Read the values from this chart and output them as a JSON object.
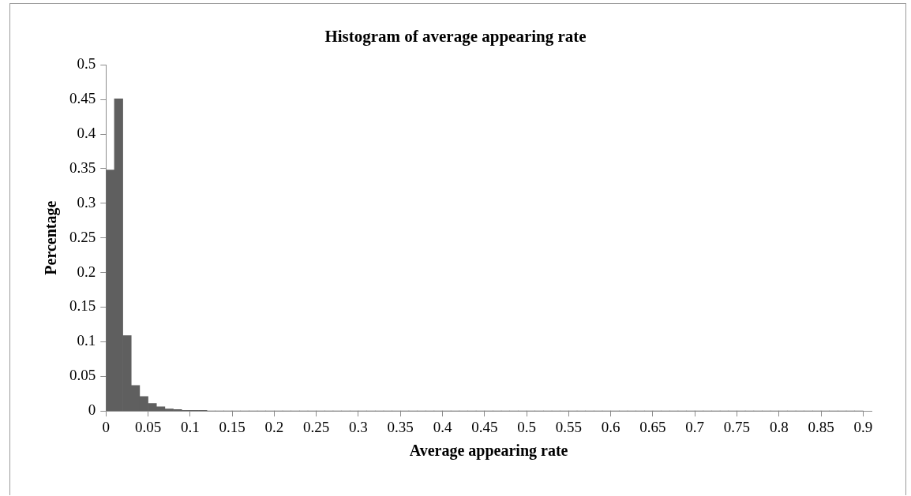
{
  "chart_data": {
    "type": "histogram",
    "title": "Histogram of average appearing rate",
    "xlabel": "Average appearing rate",
    "ylabel": "Percentage",
    "bins": [
      0,
      0.01,
      0.02,
      0.03,
      0.04,
      0.05,
      0.06,
      0.07,
      0.08,
      0.09,
      0.1,
      0.11,
      0.12,
      0.13,
      0.14,
      0.15,
      0.16,
      0.17,
      0.18,
      0.19,
      0.2,
      0.21,
      0.22,
      0.23,
      0.24,
      0.25,
      0.26,
      0.27,
      0.28,
      0.29,
      0.3,
      0.31,
      0.32,
      0.33,
      0.34,
      0.35,
      0.36,
      0.37,
      0.38,
      0.39,
      0.4,
      0.41,
      0.42,
      0.43,
      0.44,
      0.45,
      0.46,
      0.47,
      0.48,
      0.49,
      0.5,
      0.51,
      0.52,
      0.53,
      0.54,
      0.55,
      0.56,
      0.57,
      0.58,
      0.59,
      0.6,
      0.61,
      0.62,
      0.63,
      0.64,
      0.65,
      0.66,
      0.67,
      0.68,
      0.69,
      0.7,
      0.71,
      0.72,
      0.73,
      0.74,
      0.75,
      0.76,
      0.77,
      0.78,
      0.79,
      0.8,
      0.81,
      0.82,
      0.83,
      0.84,
      0.85,
      0.86,
      0.87,
      0.88,
      0.89,
      0.9
    ],
    "values": [
      0.348,
      0.451,
      0.109,
      0.037,
      0.021,
      0.011,
      0.006,
      0.003,
      0.002,
      0.001,
      0.001,
      0.001,
      0,
      0,
      0,
      0,
      0,
      0,
      0,
      0,
      0,
      0,
      0,
      0,
      0,
      0,
      0,
      0,
      0,
      0,
      0,
      0,
      0,
      0,
      0,
      0,
      0,
      0,
      0,
      0,
      0,
      0,
      0,
      0,
      0,
      0,
      0,
      0,
      0,
      0,
      0,
      0,
      0,
      0,
      0,
      0,
      0,
      0,
      0,
      0,
      0,
      0,
      0,
      0,
      0,
      0,
      0,
      0,
      0,
      0,
      0,
      0,
      0,
      0,
      0,
      0,
      0,
      0,
      0,
      0,
      0,
      0,
      0,
      0,
      0,
      0,
      0,
      0,
      0,
      0
    ],
    "color": "#5f5f5f",
    "xlim": [
      0,
      0.91
    ],
    "xticks": [
      0,
      0.05,
      0.1,
      0.15,
      0.2,
      0.25,
      0.3,
      0.35,
      0.4,
      0.45,
      0.5,
      0.55,
      0.6,
      0.65,
      0.7,
      0.75,
      0.8,
      0.85,
      0.9
    ],
    "ylim": [
      0,
      0.5
    ],
    "yticks": [
      0,
      0.05,
      0.1,
      0.15,
      0.2,
      0.25,
      0.3,
      0.35,
      0.4,
      0.45,
      0.5
    ]
  }
}
